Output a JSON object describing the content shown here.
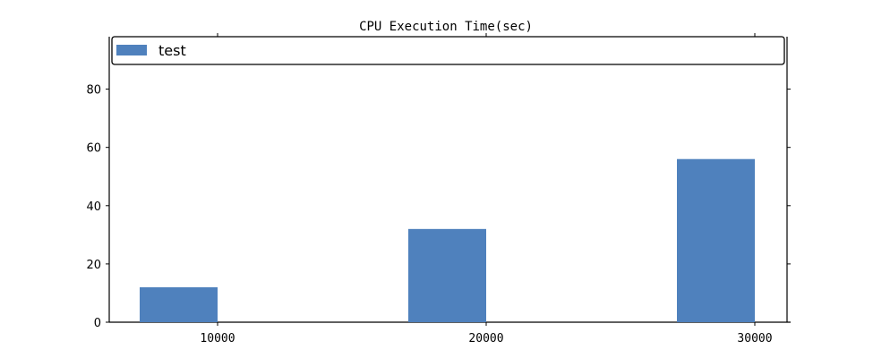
{
  "chart_data": {
    "type": "bar",
    "title": "CPU Execution Time(sec)",
    "xlabel": "",
    "ylabel": "",
    "categories": [
      "10000",
      "20000",
      "30000"
    ],
    "series": [
      {
        "name": "test",
        "values": [
          12,
          32,
          56
        ],
        "color": "#4f81bd"
      }
    ],
    "ylim": [
      0,
      98
    ],
    "y_ticks": [
      0,
      20,
      40,
      60,
      80
    ],
    "grid": false,
    "legend_position": "top"
  }
}
